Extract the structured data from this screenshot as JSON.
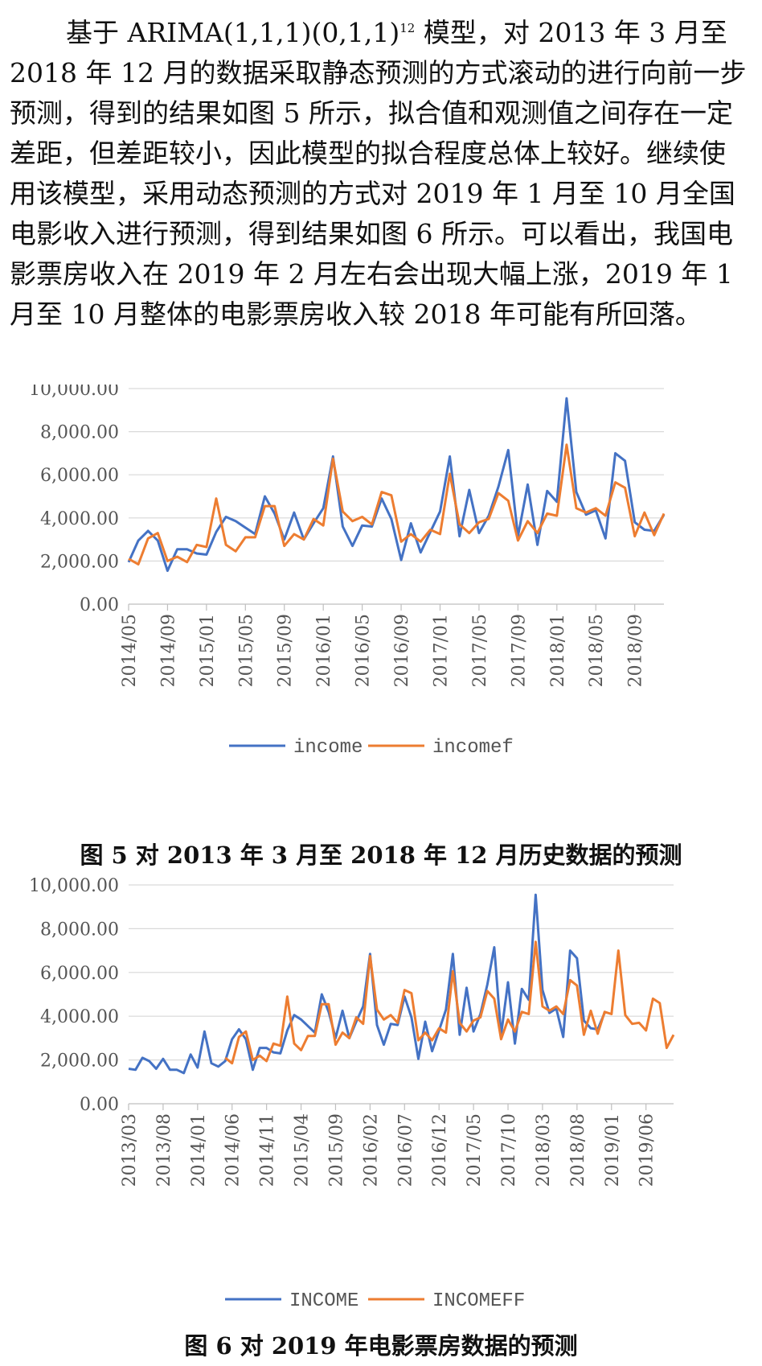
{
  "paragraph": {
    "part1": "基于 ARIMA(1,1,1)(0,1,1)",
    "sup": "12",
    "part2": " 模型，对 2013 年 3 月至 2018 年 12 月的数据采取静态预测的方式滚动的进行向前一步预测，得到的结果如图 5 所示，拟合值和观测值之间存在一定差距，但差距较小，因此模型的拟合程度总体上较好。继续使用该模型，采用动态预测的方式对 2019 年 1 月至 10 月全国电影收入进行预测，得到结果如图 6 所示。可以看出，我国电影票房收入在 2019 年 2 月左右会出现大幅上涨，2019 年 1 月至 10 月整体的电影票房收入较 2018 年可能有所回落。"
  },
  "colors": {
    "series1": "#4472C4",
    "series2": "#ED7D31",
    "grid": "#d9d9d9",
    "axis": "#bfbfbf"
  },
  "chart_data": [
    {
      "type": "line",
      "ylim": [
        0,
        10000
      ],
      "yticks": [
        "0.00",
        "2,000.00",
        "4,000.00",
        "6,000.00",
        "8,000.00",
        "10,000.00"
      ],
      "x": [
        "2014/05",
        "2014/06",
        "2014/07",
        "2014/08",
        "2014/09",
        "2014/10",
        "2014/11",
        "2014/12",
        "2015/01",
        "2015/02",
        "2015/03",
        "2015/04",
        "2015/05",
        "2015/06",
        "2015/07",
        "2015/08",
        "2015/09",
        "2015/10",
        "2015/11",
        "2015/12",
        "2016/01",
        "2016/02",
        "2016/03",
        "2016/04",
        "2016/05",
        "2016/06",
        "2016/07",
        "2016/08",
        "2016/09",
        "2016/10",
        "2016/11",
        "2016/12",
        "2017/01",
        "2017/02",
        "2017/03",
        "2017/04",
        "2017/05",
        "2017/06",
        "2017/07",
        "2017/08",
        "2017/09",
        "2017/10",
        "2017/11",
        "2017/12",
        "2018/01",
        "2018/02",
        "2018/03",
        "2018/04",
        "2018/05",
        "2018/06",
        "2018/07",
        "2018/08",
        "2018/09",
        "2018/10",
        "2018/11",
        "2018/12"
      ],
      "xtick_labels": [
        "2014/05",
        "2014/09",
        "2015/01",
        "2015/05",
        "2015/09",
        "2016/01",
        "2016/05",
        "2016/09",
        "2017/01",
        "2017/05",
        "2017/09",
        "2018/01",
        "2018/05",
        "2018/09"
      ],
      "series": [
        {
          "name": "income",
          "values": [
            1950,
            2950,
            3400,
            2950,
            1550,
            2550,
            2550,
            2350,
            2300,
            3350,
            4050,
            3850,
            3550,
            3250,
            5000,
            4200,
            3000,
            4250,
            3000,
            3750,
            4450,
            6850,
            3600,
            2700,
            3650,
            3600,
            4900,
            3950,
            2050,
            3750,
            2400,
            3350,
            4300,
            6850,
            3150,
            5300,
            3300,
            4100,
            5450,
            7150,
            3150,
            5550,
            2750,
            5250,
            4750,
            9550,
            5200,
            4150,
            4350,
            3050,
            7000,
            6650,
            3800,
            3450,
            3400,
            4150
          ]
        },
        {
          "name": "incomef",
          "values": [
            2100,
            1850,
            3050,
            3300,
            2000,
            2200,
            1950,
            2750,
            2650,
            4900,
            2750,
            2450,
            3100,
            3100,
            4550,
            4550,
            2700,
            3250,
            3000,
            3950,
            3650,
            6750,
            4300,
            3850,
            4050,
            3700,
            5200,
            5050,
            2900,
            3250,
            2900,
            3450,
            3250,
            6050,
            3700,
            3300,
            3800,
            3950,
            5150,
            4800,
            2950,
            3850,
            3300,
            4200,
            4100,
            7400,
            4450,
            4250,
            4450,
            4100,
            5650,
            5400,
            3150,
            4250,
            3200,
            4200
          ]
        }
      ]
    },
    {
      "type": "line",
      "ylim": [
        0,
        10000
      ],
      "yticks": [
        "0.00",
        "2,000.00",
        "4,000.00",
        "6,000.00",
        "8,000.00",
        "10,000.00"
      ],
      "x": [
        "2013/03",
        "2013/04",
        "2013/05",
        "2013/06",
        "2013/07",
        "2013/08",
        "2013/09",
        "2013/10",
        "2013/11",
        "2013/12",
        "2014/01",
        "2014/02",
        "2014/03",
        "2014/04",
        "2014/05",
        "2014/06",
        "2014/07",
        "2014/08",
        "2014/09",
        "2014/10",
        "2014/11",
        "2014/12",
        "2015/01",
        "2015/02",
        "2015/03",
        "2015/04",
        "2015/05",
        "2015/06",
        "2015/07",
        "2015/08",
        "2015/09",
        "2015/10",
        "2015/11",
        "2015/12",
        "2016/01",
        "2016/02",
        "2016/03",
        "2016/04",
        "2016/05",
        "2016/06",
        "2016/07",
        "2016/08",
        "2016/09",
        "2016/10",
        "2016/11",
        "2016/12",
        "2017/01",
        "2017/02",
        "2017/03",
        "2017/04",
        "2017/05",
        "2017/06",
        "2017/07",
        "2017/08",
        "2017/09",
        "2017/10",
        "2017/11",
        "2017/12",
        "2018/01",
        "2018/02",
        "2018/03",
        "2018/04",
        "2018/05",
        "2018/06",
        "2018/07",
        "2018/08",
        "2018/09",
        "2018/10",
        "2018/11",
        "2018/12",
        "2019/01",
        "2019/02",
        "2019/03",
        "2019/04",
        "2019/05",
        "2019/06",
        "2019/07",
        "2019/08",
        "2019/09",
        "2019/10"
      ],
      "xtick_labels": [
        "2013/03",
        "2013/08",
        "2014/01",
        "2014/06",
        "2014/11",
        "2015/04",
        "2015/09",
        "2016/02",
        "2016/07",
        "2016/12",
        "2017/05",
        "2017/10",
        "2018/03",
        "2018/08",
        "2019/01",
        "2019/06"
      ],
      "series": [
        {
          "name": "INCOME",
          "values": [
            1600,
            1550,
            2100,
            1950,
            1600,
            2050,
            1550,
            1550,
            1400,
            2250,
            1650,
            3300,
            1850,
            1700,
            1950,
            2950,
            3400,
            2950,
            1550,
            2550,
            2550,
            2350,
            2300,
            3350,
            4050,
            3850,
            3550,
            3250,
            5000,
            4200,
            3000,
            4250,
            3000,
            3750,
            4450,
            6850,
            3600,
            2700,
            3650,
            3600,
            4900,
            3950,
            2050,
            3750,
            2400,
            3350,
            4300,
            6850,
            3150,
            5300,
            3300,
            4100,
            5450,
            7150,
            3150,
            5550,
            2750,
            5250,
            4750,
            9550,
            5200,
            4150,
            4350,
            3050,
            7000,
            6650,
            3800,
            3450,
            3400,
            4150,
            null,
            null,
            null,
            null,
            null,
            null,
            null,
            null,
            null,
            null
          ]
        },
        {
          "name": "INCOMEFF",
          "values": [
            null,
            null,
            null,
            null,
            null,
            null,
            null,
            null,
            null,
            null,
            null,
            null,
            null,
            null,
            2100,
            1850,
            3050,
            3300,
            2000,
            2200,
            1950,
            2750,
            2650,
            4900,
            2750,
            2450,
            3100,
            3100,
            4550,
            4550,
            2700,
            3250,
            3000,
            3950,
            3650,
            6750,
            4300,
            3850,
            4050,
            3700,
            5200,
            5050,
            2900,
            3250,
            2900,
            3450,
            3250,
            6050,
            3700,
            3300,
            3800,
            3950,
            5150,
            4800,
            2950,
            3850,
            3300,
            4200,
            4100,
            7400,
            4450,
            4250,
            4450,
            4100,
            5650,
            5400,
            3150,
            4250,
            3200,
            4200,
            4100,
            7000,
            4050,
            3650,
            3700,
            3350,
            4800,
            4600,
            2550,
            3150
          ]
        }
      ]
    }
  ],
  "fig5": {
    "legend": [
      "income",
      "incomef"
    ],
    "caption": "图 5  对 2013 年 3 月至 2018 年 12 月历史数据的预测"
  },
  "fig6": {
    "legend": [
      "INCOME",
      "INCOMEFF"
    ],
    "caption": "图 6  对 2019 年电影票房数据的预测"
  }
}
